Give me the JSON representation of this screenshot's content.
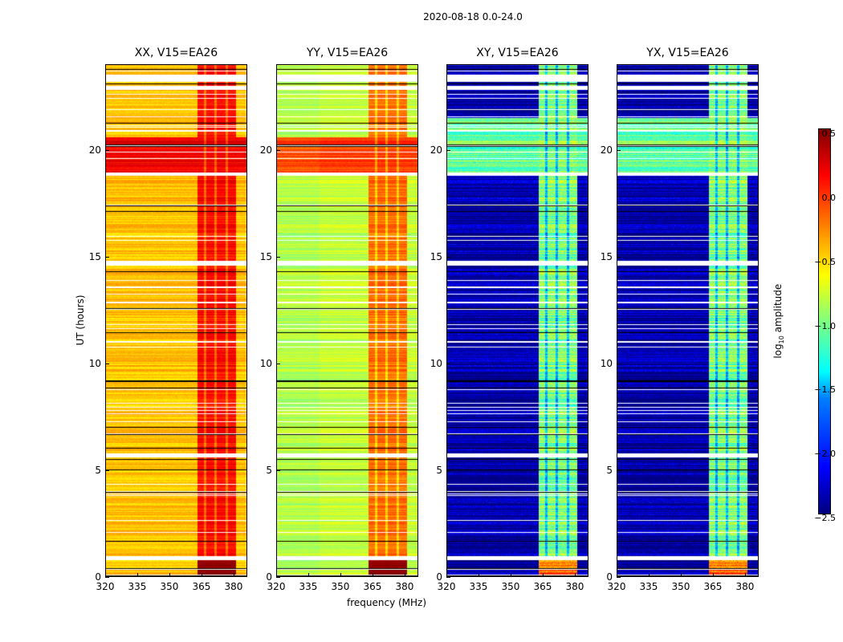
{
  "chart_data": {
    "type": "heatmap",
    "title": "2020-08-18 0.0-24.0",
    "xlabel": "frequency (MHz)",
    "ylabel": "UT (hours)",
    "xlim": [
      320,
      386.4
    ],
    "ylim": [
      0,
      24
    ],
    "xticks": [
      "320",
      "335",
      "350",
      "365",
      "380"
    ],
    "xtick_values": [
      320,
      335,
      350,
      365,
      380
    ],
    "yticks": [
      "0",
      "5",
      "10",
      "15",
      "20"
    ],
    "ytick_values": [
      0,
      5,
      10,
      15,
      20
    ],
    "colorbar": {
      "label_prefix": "log",
      "label_sub": "10",
      "label_suffix": " amplitude",
      "range": [
        -2.5,
        0.5
      ],
      "colormap": "jet",
      "ticks": [
        "0.5",
        "0.0",
        "−0.5",
        "−1.0",
        "−1.5",
        "−2.0",
        "−2.5"
      ],
      "tick_values": [
        0.5,
        0.0,
        -0.5,
        -1.0,
        -1.5,
        -2.0,
        -2.5
      ]
    },
    "band_MHz": [
      363,
      381
    ],
    "flagged_hours": [
      [
        0.8,
        1.0
      ],
      [
        5.6,
        5.8
      ],
      [
        14.6,
        14.8
      ],
      [
        18.8,
        18.95
      ],
      [
        22.8,
        23.0
      ],
      [
        23.2,
        23.5
      ]
    ],
    "panels": [
      {
        "title": "XX, V15=EA26",
        "base_log_amp": -0.45,
        "band_log_amp": 0.1,
        "storm_hours": [
          18.9,
          20.6
        ],
        "storm_log_amp": 0.15
      },
      {
        "title": "YY, V15=EA26",
        "base_log_amp": -0.8,
        "band_log_amp": -0.2,
        "storm_hours": [
          18.9,
          20.6
        ],
        "storm_log_amp": -0.05
      },
      {
        "title": "XY, V15=EA26",
        "base_log_amp": -2.4,
        "band_log_amp": -1.0,
        "storm_hours": [
          18.9,
          21.5
        ],
        "storm_log_amp": -1.1
      },
      {
        "title": "YX, V15=EA26",
        "base_log_amp": -2.4,
        "band_log_amp": -1.0,
        "storm_hours": [
          18.9,
          21.5
        ],
        "storm_log_amp": -1.1
      }
    ]
  }
}
